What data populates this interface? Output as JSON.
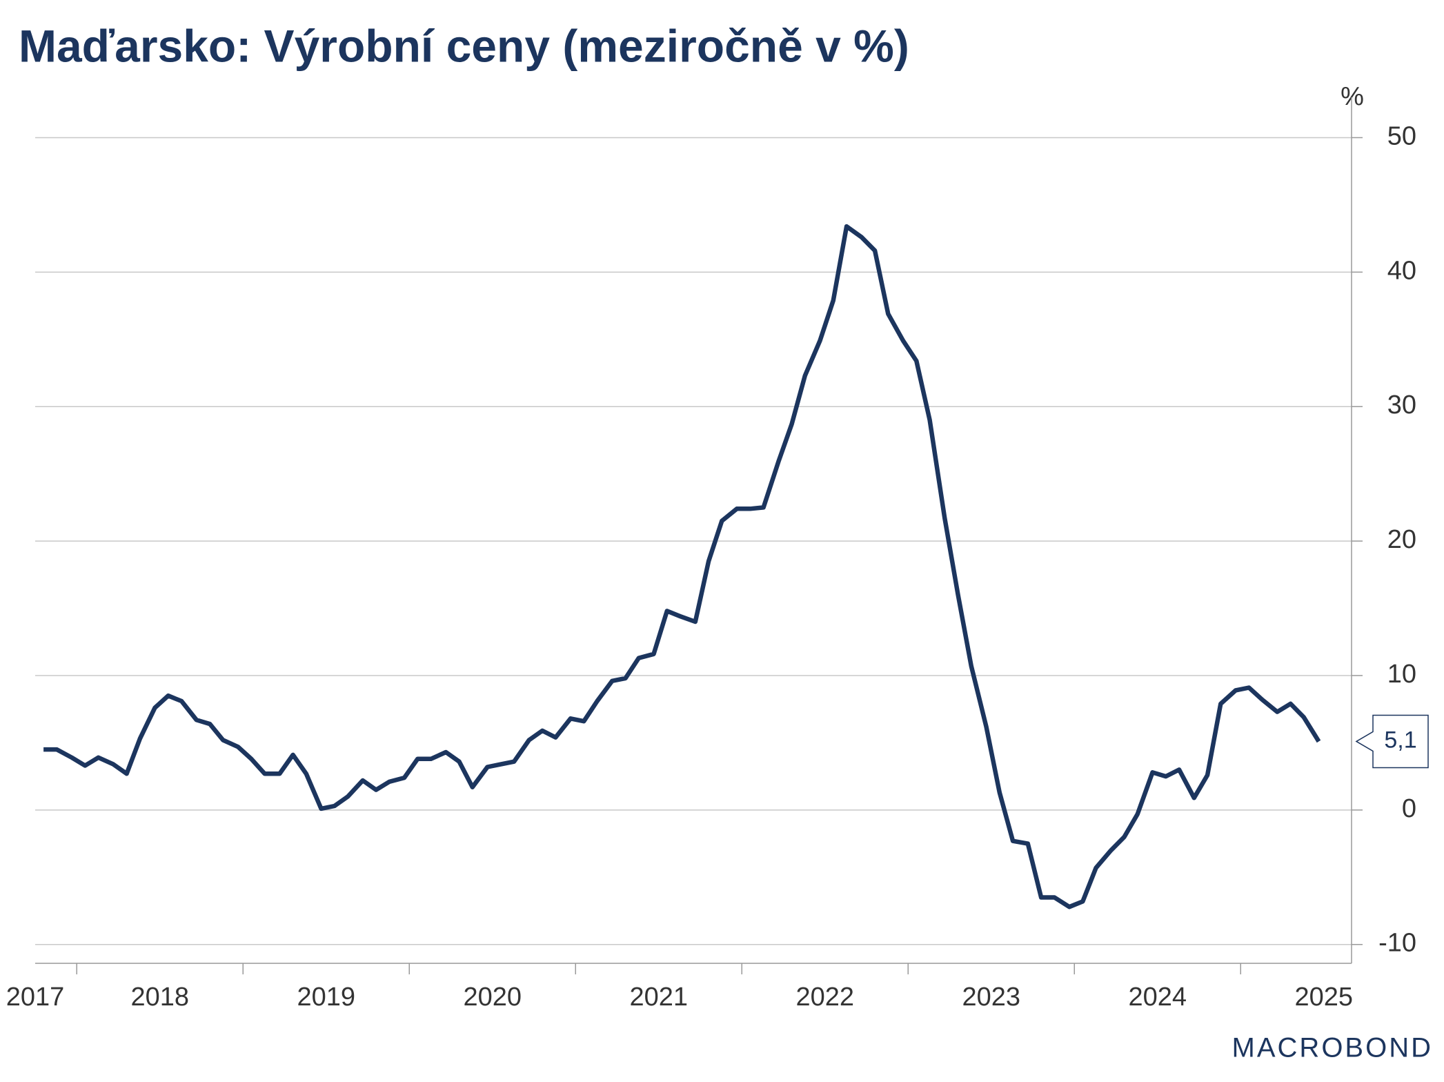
{
  "chart_data": {
    "type": "line",
    "title": "Maďarsko: Výrobní ceny (meziročně v %)",
    "y_unit": "%",
    "logo": "MACROBOND",
    "year_labels": [
      "2017",
      "2018",
      "2019",
      "2020",
      "2021",
      "2022",
      "2023",
      "2024",
      "2025"
    ],
    "x": [
      2017.8,
      2017.88,
      2017.97,
      2018.05,
      2018.13,
      2018.22,
      2018.3,
      2018.38,
      2018.47,
      2018.55,
      2018.63,
      2018.72,
      2018.8,
      2018.88,
      2018.97,
      2019.05,
      2019.13,
      2019.22,
      2019.3,
      2019.38,
      2019.47,
      2019.55,
      2019.63,
      2019.72,
      2019.8,
      2019.88,
      2019.97,
      2020.05,
      2020.13,
      2020.22,
      2020.3,
      2020.38,
      2020.47,
      2020.55,
      2020.63,
      2020.72,
      2020.8,
      2020.88,
      2020.97,
      2021.05,
      2021.13,
      2021.22,
      2021.3,
      2021.38,
      2021.47,
      2021.55,
      2021.63,
      2021.72,
      2021.8,
      2021.88,
      2021.97,
      2022.05,
      2022.13,
      2022.22,
      2022.3,
      2022.38,
      2022.47,
      2022.55,
      2022.63,
      2022.72,
      2022.8,
      2022.88,
      2022.97,
      2023.05,
      2023.13,
      2023.22,
      2023.3,
      2023.38,
      2023.47,
      2023.55,
      2023.63,
      2023.72,
      2023.8,
      2023.88,
      2023.97,
      2024.05,
      2024.13,
      2024.22,
      2024.3,
      2024.38,
      2024.47,
      2024.55,
      2024.63,
      2024.72,
      2024.8,
      2024.88,
      2024.97,
      2025.05,
      2025.13,
      2025.22,
      2025.3,
      2025.38,
      2025.47
    ],
    "series": [
      {
        "name": "Výrobní ceny",
        "color": "#1c355e",
        "values": [
          4.5,
          4.5,
          3.9,
          3.3,
          3.9,
          3.4,
          2.7,
          5.3,
          7.6,
          8.5,
          8.1,
          6.7,
          6.4,
          5.2,
          4.7,
          3.8,
          2.7,
          2.7,
          4.1,
          2.7,
          0.1,
          0.3,
          1.0,
          2.2,
          1.5,
          2.1,
          2.4,
          3.8,
          3.8,
          4.3,
          3.6,
          1.7,
          3.2,
          3.4,
          3.6,
          5.2,
          5.9,
          5.4,
          6.8,
          6.6,
          8.1,
          9.6,
          9.8,
          11.3,
          11.6,
          14.8,
          14.4,
          14.0,
          18.5,
          21.5,
          22.4,
          22.4,
          22.5,
          25.9,
          28.7,
          32.3,
          34.9,
          37.9,
          43.4,
          42.6,
          41.6,
          36.9,
          34.9,
          33.4,
          29.0,
          21.7,
          16.0,
          10.7,
          6.2,
          1.3,
          -2.3,
          -2.5,
          -6.5,
          -6.5,
          -7.2,
          -6.8,
          -4.3,
          -3.0,
          -2.0,
          -0.3,
          2.8,
          2.5,
          3.0,
          0.9,
          2.6,
          7.9,
          8.9,
          9.1,
          8.2,
          7.3,
          7.9,
          6.9,
          5.1
        ],
        "value_labels": [
          null,
          null,
          null,
          null,
          null,
          null,
          null,
          null,
          null,
          null,
          null,
          null,
          null,
          null,
          null,
          null,
          null,
          null,
          null,
          null,
          null,
          null,
          null,
          null,
          null,
          null,
          null,
          null,
          null,
          null,
          null,
          null,
          null,
          null,
          null,
          null,
          null,
          null,
          null,
          null,
          null,
          null,
          null,
          null,
          null,
          null,
          null,
          null,
          null,
          null,
          null,
          null,
          null,
          null,
          null,
          null,
          null,
          null,
          null,
          null,
          null,
          null,
          null,
          null,
          null,
          null,
          null,
          null,
          null,
          null,
          null,
          null,
          null,
          null,
          null,
          null,
          null,
          null,
          null,
          null,
          null,
          null,
          null,
          null,
          null,
          null,
          null,
          null,
          null,
          null,
          null,
          null,
          "5,1"
        ]
      }
    ],
    "xlim": [
      2017.75,
      2025.667
    ],
    "xticks": [
      2018,
      2019,
      2020,
      2021,
      2022,
      2023,
      2024,
      2025
    ],
    "ylim": [
      -11.4,
      53
    ],
    "yticks": [
      -10,
      0,
      10,
      20,
      30,
      40,
      50
    ],
    "grid": true
  }
}
